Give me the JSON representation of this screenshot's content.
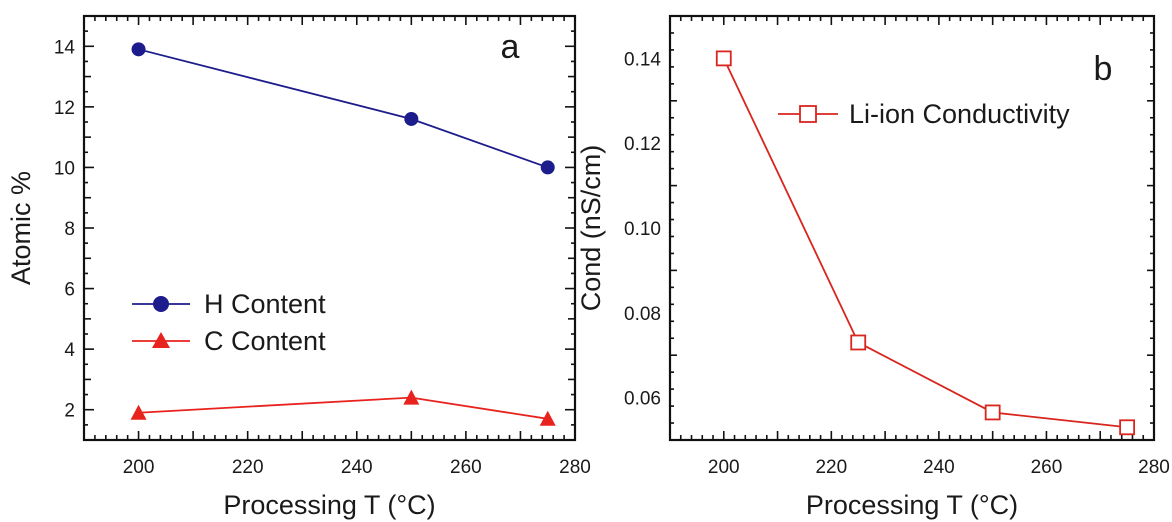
{
  "chart_data": [
    {
      "panel": "a",
      "type": "line",
      "xlabel": "Processing T (°C)",
      "ylabel": "Atomic %",
      "xlim": [
        190,
        280
      ],
      "ylim": [
        1,
        15
      ],
      "xticks": [
        200,
        220,
        240,
        260,
        280
      ],
      "yticks": [
        2,
        4,
        6,
        8,
        10,
        12,
        14
      ],
      "grid": false,
      "legend_position": "bottom-left",
      "series": [
        {
          "name": "H Content",
          "marker": "circle",
          "color": "#1c1c8c",
          "x": [
            200,
            250,
            275
          ],
          "y": [
            13.9,
            11.6,
            10.0
          ]
        },
        {
          "name": "C Content",
          "marker": "triangle",
          "color": "#e8231e",
          "x": [
            200,
            250,
            275
          ],
          "y": [
            1.9,
            2.4,
            1.7
          ]
        }
      ]
    },
    {
      "panel": "b",
      "type": "line",
      "xlabel": "Processing T (°C)",
      "ylabel": "Cond (nS/cm)",
      "xlim": [
        190,
        280
      ],
      "ylim": [
        0.05,
        0.15
      ],
      "xticks": [
        200,
        220,
        240,
        260,
        280
      ],
      "yticks": [
        0.06,
        0.08,
        0.1,
        0.12,
        0.14
      ],
      "ytick_labels": [
        "0.06",
        "0.08",
        "0.10",
        "0.12",
        "0.14"
      ],
      "grid": false,
      "legend_position": "top-right",
      "series": [
        {
          "name": "Li-ion Conductivity",
          "marker": "open-square",
          "color": "#d8251e",
          "x": [
            200,
            225,
            250,
            275
          ],
          "y": [
            0.14,
            0.073,
            0.0565,
            0.053
          ]
        }
      ]
    }
  ]
}
